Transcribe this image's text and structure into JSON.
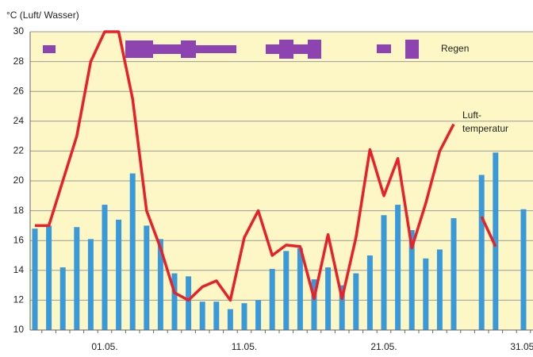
{
  "chart_data": {
    "type": "bar_line",
    "title": "°C (Luft/ Wasser)",
    "categories": [
      null,
      null,
      null,
      null,
      null,
      "01.05.",
      null,
      null,
      null,
      null,
      null,
      null,
      null,
      null,
      null,
      "11.05.",
      null,
      null,
      null,
      null,
      null,
      null,
      null,
      null,
      null,
      "21.05.",
      null,
      null,
      null,
      null,
      null,
      null,
      null,
      null,
      null,
      "31.05."
    ],
    "series": [
      {
        "name": "Wasser",
        "type": "bar",
        "color": "#3a9ad9",
        "values": [
          16.8,
          17.0,
          14.2,
          16.9,
          16.1,
          18.4,
          17.4,
          20.5,
          17.0,
          16.1,
          13.8,
          13.6,
          11.9,
          11.9,
          11.4,
          11.8,
          12.0,
          14.1,
          15.3,
          15.5,
          13.4,
          14.2,
          13.0,
          13.8,
          15.0,
          17.7,
          18.4,
          16.7,
          14.8,
          15.4,
          17.5,
          null,
          20.4,
          21.9,
          null,
          18.1
        ]
      },
      {
        "name": "Lufttemperatur",
        "type": "line",
        "color": "#e8202a",
        "values": [
          17.0,
          17.0,
          20.0,
          23.0,
          28.0,
          30.0,
          30.0,
          25.5,
          18.0,
          15.5,
          12.5,
          12.0,
          12.9,
          13.3,
          12.0,
          16.2,
          18.0,
          15.0,
          15.7,
          15.6,
          12.1,
          16.4,
          12.1,
          16.2,
          22.1,
          19.0,
          21.5,
          15.5,
          18.5,
          22.0,
          23.8,
          null,
          17.6,
          15.6,
          null,
          null
        ]
      }
    ],
    "line_annotation": [
      "Luft-",
      "temperatur"
    ],
    "rain_label": "Regen",
    "ylim": [
      10,
      30
    ],
    "yticks": [
      10,
      12,
      14,
      16,
      18,
      20,
      22,
      24,
      26,
      28,
      30
    ],
    "grid": true
  }
}
